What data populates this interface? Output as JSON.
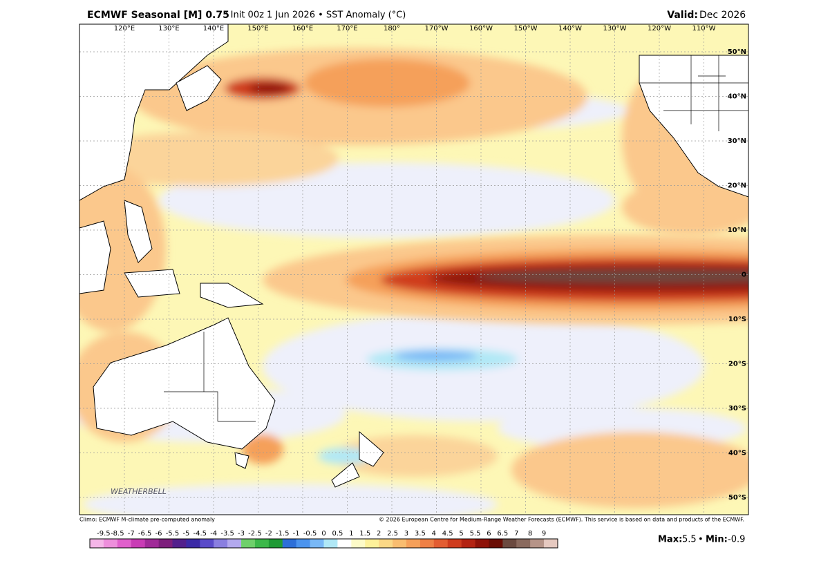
{
  "header": {
    "title": "ECMWF Seasonal [M] 0.75",
    "subtitle": "° Init 00z 1 Jun 2026 • SST Anomaly (°C)",
    "valid_label": "Valid:",
    "valid_value": "Dec 2026"
  },
  "map": {
    "lon_labels": [
      "120°E",
      "130°E",
      "140°E",
      "150°E",
      "160°E",
      "170°E",
      "180°",
      "170°W",
      "160°W",
      "150°W",
      "140°W",
      "130°W",
      "120°W",
      "110°W"
    ],
    "lat_labels": [
      "50°N",
      "40°N",
      "30°N",
      "20°N",
      "10°N",
      "0",
      "10°S",
      "20°S",
      "30°S",
      "40°S",
      "50°S"
    ],
    "watermark": "WEATHERBELL"
  },
  "footer": {
    "left": "Climo: ECMWF M-climate pre-computed anomaly",
    "right": "© 2026 European Centre for Medium-Range Weather Forecasts (ECMWF). This service is based on data and products of the ECMWF."
  },
  "colorbar": {
    "ticks": [
      -9.5,
      -8.5,
      -7,
      -6.5,
      -6,
      -5.5,
      -5,
      -4.5,
      -4,
      -3.5,
      -3,
      -2.5,
      -2,
      -1.5,
      -1,
      -0.5,
      0,
      0.5,
      1,
      1.5,
      2,
      2.5,
      3,
      3.5,
      4,
      4.5,
      5,
      5.5,
      6,
      6.5,
      7,
      8,
      9
    ],
    "colors": [
      "#f5b6e8",
      "#ee8fdc",
      "#e060cc",
      "#c93cb5",
      "#a02a98",
      "#7d1f7c",
      "#52208c",
      "#3b2aa6",
      "#5a4bc9",
      "#8a7fe0",
      "#b3a9ee",
      "#6fd06b",
      "#3cb84a",
      "#1f9a35",
      "#2d6fd8",
      "#4c94ee",
      "#79b8f6",
      "#b0e8f6",
      "#ffffff",
      "#fdfbc8",
      "#fdf19a",
      "#fbd886",
      "#f9bd70",
      "#f5a05a",
      "#ef8046",
      "#e35d32",
      "#cf3c1e",
      "#b32312",
      "#8e1208",
      "#6a0d04",
      "#6b4a40",
      "#8a6a5e",
      "#b69488",
      "#e6c9c0"
    ]
  },
  "stats": {
    "max_label": "Max:",
    "max": 5.5,
    "sep": "•",
    "min_label": "Min:",
    "min": -0.9
  }
}
